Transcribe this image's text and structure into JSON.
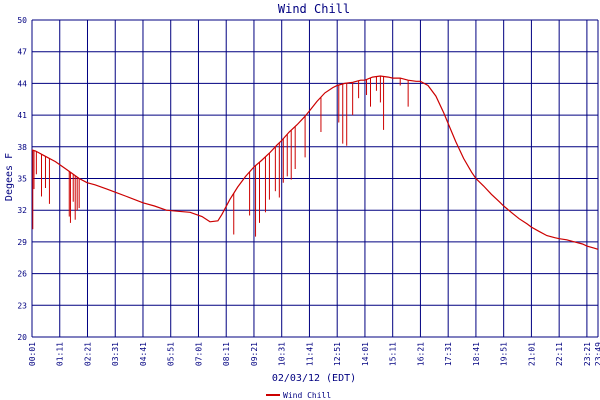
{
  "chart_data": {
    "type": "line",
    "title": "Wind Chill",
    "xlabel": "02/03/12 (EDT)",
    "ylabel": "Degees F",
    "ylim": [
      20,
      50
    ],
    "yticks": [
      "20",
      "23",
      "26",
      "29",
      "32",
      "35",
      "38",
      "41",
      "44",
      "47",
      "50"
    ],
    "xlim": [
      "00:01",
      "23:49"
    ],
    "xticks": [
      "00:01",
      "01:11",
      "02:21",
      "03:31",
      "04:41",
      "05:51",
      "07:01",
      "08:11",
      "09:21",
      "10:31",
      "11:41",
      "12:51",
      "14:01",
      "15:11",
      "16:21",
      "17:31",
      "18:41",
      "19:51",
      "21:01",
      "22:11",
      "23:21",
      "23:49"
    ],
    "grid": true,
    "legend_position": "bottom-left",
    "colors": {
      "grid": "#000080",
      "text": "#000080",
      "series": "#cc0000"
    },
    "series": [
      {
        "name": "Wind Chill",
        "color": "#cc0000",
        "x": [
          "00:01",
          "00:10",
          "00:30",
          "01:00",
          "01:30",
          "02:00",
          "02:20",
          "02:40",
          "03:10",
          "03:31",
          "04:00",
          "04:41",
          "05:10",
          "05:40",
          "06:10",
          "06:40",
          "07:10",
          "07:30",
          "07:50",
          "08:00",
          "08:20",
          "08:40",
          "09:00",
          "09:21",
          "09:40",
          "10:00",
          "10:20",
          "10:31",
          "10:50",
          "11:10",
          "11:30",
          "11:41",
          "12:00",
          "12:20",
          "12:40",
          "12:51",
          "13:10",
          "13:30",
          "13:50",
          "14:01",
          "14:20",
          "14:40",
          "15:00",
          "15:11",
          "15:30",
          "15:50",
          "16:10",
          "16:21",
          "16:40",
          "17:00",
          "17:20",
          "17:31",
          "17:50",
          "18:10",
          "18:30",
          "18:41",
          "19:00",
          "19:20",
          "19:40",
          "19:51",
          "20:10",
          "20:30",
          "20:50",
          "21:01",
          "21:20",
          "21:40",
          "22:00",
          "22:11",
          "22:30",
          "22:50",
          "23:10",
          "23:21",
          "23:40",
          "23:49"
        ],
        "y": [
          37.7,
          37.6,
          37.2,
          36.6,
          35.8,
          35.0,
          34.6,
          34.4,
          34.0,
          33.7,
          33.3,
          32.7,
          32.4,
          32.0,
          31.9,
          31.8,
          31.4,
          30.9,
          31.0,
          31.6,
          33.0,
          34.2,
          35.2,
          36.1,
          36.7,
          37.4,
          38.2,
          38.6,
          39.4,
          40.1,
          40.9,
          41.4,
          42.3,
          43.1,
          43.6,
          43.8,
          44.0,
          44.1,
          44.3,
          44.3,
          44.6,
          44.7,
          44.6,
          44.5,
          44.5,
          44.3,
          44.2,
          44.2,
          43.8,
          42.8,
          41.2,
          40.2,
          38.5,
          36.9,
          35.6,
          35.0,
          34.3,
          33.5,
          32.8,
          32.4,
          31.8,
          31.2,
          30.7,
          30.4,
          30.0,
          29.6,
          29.4,
          29.3,
          29.2,
          29.0,
          28.8,
          28.6,
          28.4,
          28.3
        ]
      }
    ],
    "dips": [
      {
        "x": "00:03",
        "y": 30.2
      },
      {
        "x": "00:06",
        "y": 34.0
      },
      {
        "x": "00:12",
        "y": 35.4
      },
      {
        "x": "00:25",
        "y": 33.3
      },
      {
        "x": "00:35",
        "y": 34.1
      },
      {
        "x": "00:45",
        "y": 32.6
      },
      {
        "x": "01:35",
        "y": 31.4
      },
      {
        "x": "01:38",
        "y": 30.8
      },
      {
        "x": "01:45",
        "y": 32.8
      },
      {
        "x": "01:50",
        "y": 31.1
      },
      {
        "x": "01:55",
        "y": 32.0
      },
      {
        "x": "02:00",
        "y": 32.2
      },
      {
        "x": "08:30",
        "y": 29.7
      },
      {
        "x": "09:10",
        "y": 31.5
      },
      {
        "x": "09:25",
        "y": 29.5
      },
      {
        "x": "09:35",
        "y": 30.8
      },
      {
        "x": "09:50",
        "y": 31.8
      },
      {
        "x": "10:00",
        "y": 33.0
      },
      {
        "x": "10:15",
        "y": 33.8
      },
      {
        "x": "10:25",
        "y": 33.2
      },
      {
        "x": "10:35",
        "y": 34.6
      },
      {
        "x": "10:45",
        "y": 35.2
      },
      {
        "x": "10:55",
        "y": 34.9
      },
      {
        "x": "11:05",
        "y": 35.9
      },
      {
        "x": "11:30",
        "y": 37.0
      },
      {
        "x": "12:10",
        "y": 39.4
      },
      {
        "x": "12:55",
        "y": 40.3
      },
      {
        "x": "13:05",
        "y": 38.3
      },
      {
        "x": "13:15",
        "y": 38.1
      },
      {
        "x": "13:30",
        "y": 41.0
      },
      {
        "x": "13:45",
        "y": 42.6
      },
      {
        "x": "14:05",
        "y": 42.9
      },
      {
        "x": "14:15",
        "y": 41.8
      },
      {
        "x": "14:30",
        "y": 43.3
      },
      {
        "x": "14:40",
        "y": 42.2
      },
      {
        "x": "14:48",
        "y": 39.6
      },
      {
        "x": "15:30",
        "y": 43.8
      },
      {
        "x": "15:50",
        "y": 41.8
      }
    ],
    "legend": [
      {
        "label": "Wind Chill",
        "color": "#cc0000"
      }
    ]
  }
}
